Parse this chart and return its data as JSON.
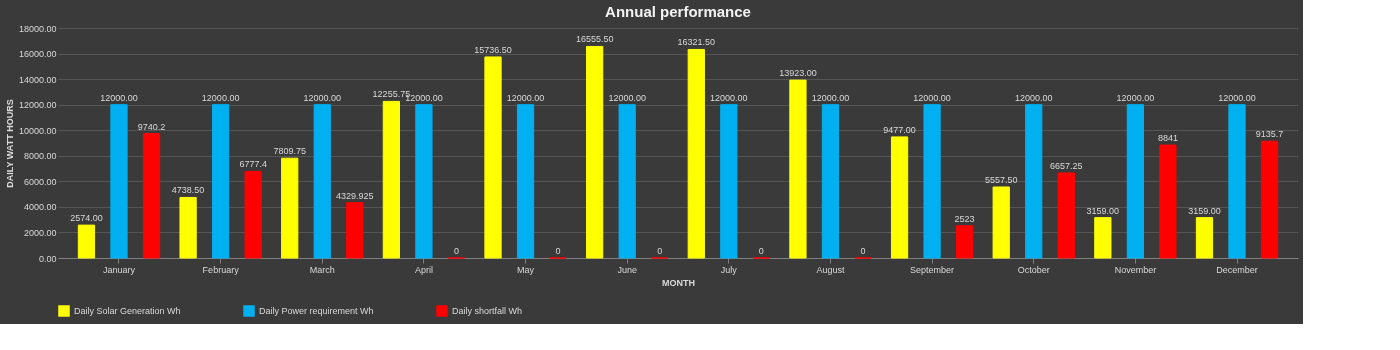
{
  "chart_data": {
    "type": "bar",
    "title": "Annual performance",
    "xlabel": "MONTH",
    "ylabel": "DAILY WATT  HOURS",
    "categories": [
      "January",
      "February",
      "March",
      "April",
      "May",
      "June",
      "July",
      "August",
      "September",
      "October",
      "November",
      "December"
    ],
    "series": [
      {
        "name": "Daily Solar Generation Wh",
        "color": "#ffff00",
        "values": [
          2574.0,
          4738.5,
          7809.75,
          12255.75,
          15736.5,
          16555.5,
          16321.5,
          13923.0,
          9477.0,
          5557.5,
          3159.0,
          3159.0
        ],
        "value_labels": [
          "2574.00",
          "4738.50",
          "7809.75",
          "12255.75",
          "15736.50",
          "16555.50",
          "16321.50",
          "13923.00",
          "9477.00",
          "5557.50",
          "3159.00",
          "3159.00"
        ]
      },
      {
        "name": "Daily Power requirement Wh",
        "color": "#00b0f0",
        "values": [
          12000,
          12000,
          12000,
          12000,
          12000,
          12000,
          12000,
          12000,
          12000,
          12000,
          12000,
          12000
        ],
        "value_labels": [
          "12000.00",
          "12000.00",
          "12000.00",
          "12000.00",
          "12000.00",
          "12000.00",
          "12000.00",
          "12000.00",
          "12000.00",
          "12000.00",
          "12000.00",
          "12000.00"
        ]
      },
      {
        "name": "Daily shortfall Wh",
        "color": "#ff0000",
        "values": [
          9740.2,
          6777.4,
          4329.925,
          0,
          0,
          0,
          0,
          0,
          2523,
          6657.25,
          8841,
          9135.7
        ],
        "value_labels": [
          "9740.2",
          "6777.4",
          "4329.925",
          "0",
          "0",
          "0",
          "0",
          "0",
          "2523",
          "6657.25",
          "8841",
          "9135.7"
        ]
      }
    ],
    "ylim": [
      0,
      18000
    ],
    "yticks": [
      {
        "value": 0,
        "label": "0.00"
      },
      {
        "value": 2000,
        "label": "2000.00"
      },
      {
        "value": 4000,
        "label": "4000.00"
      },
      {
        "value": 6000,
        "label": "6000.00"
      },
      {
        "value": 8000,
        "label": "8000.00"
      },
      {
        "value": 10000,
        "label": "10000.00"
      },
      {
        "value": 12000,
        "label": "12000.00"
      },
      {
        "value": 14000,
        "label": "14000.00"
      },
      {
        "value": 16000,
        "label": "16000.00"
      },
      {
        "value": 18000,
        "label": "18000.00"
      }
    ],
    "grid": "y",
    "legend": "bottom"
  }
}
